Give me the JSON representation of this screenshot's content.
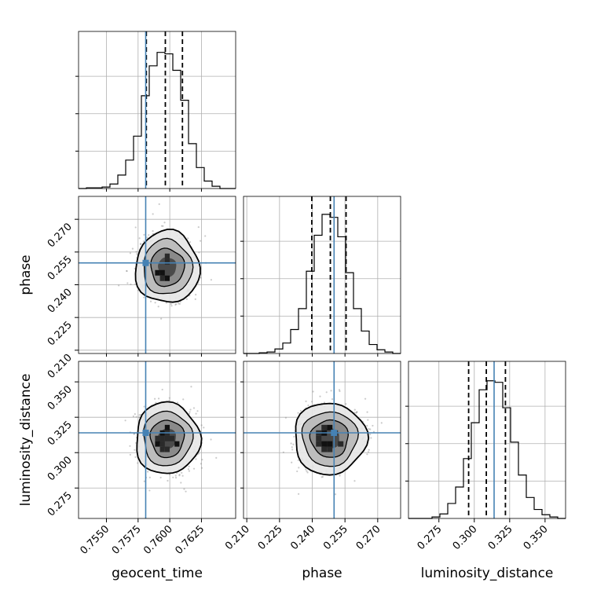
{
  "chart_data": {
    "type": "corner",
    "parameters": [
      "geocent_time",
      "phase",
      "luminosity_distance"
    ],
    "truths": [
      0.7581,
      0.25,
      0.314
    ],
    "truth_color": "#4682b4",
    "ranges": [
      [
        0.7528,
        0.7652
      ],
      [
        0.2085,
        0.2805
      ],
      [
        0.2535,
        0.3645
      ]
    ],
    "ticks": [
      [
        0.755,
        0.7575,
        0.76,
        0.7625
      ],
      [
        0.21,
        0.225,
        0.24,
        0.255,
        0.27
      ],
      [
        0.275,
        0.3,
        0.325,
        0.35
      ]
    ],
    "tick_labels": [
      [
        "0.7550",
        "0.7575",
        "0.7600",
        "0.7625"
      ],
      [
        "0.210",
        "0.225",
        "0.240",
        "0.255",
        "0.270"
      ],
      [
        "0.275",
        "0.300",
        "0.325",
        "0.350"
      ]
    ],
    "marginals": [
      {
        "parameter": "geocent_time",
        "quantiles": [
          0.75815,
          0.75965,
          0.761
        ],
        "hist_max": 1.0,
        "hist": [
          0.0,
          0.005,
          0.005,
          0.01,
          0.03,
          0.09,
          0.19,
          0.35,
          0.62,
          0.82,
          0.91,
          0.9,
          0.79,
          0.59,
          0.3,
          0.14,
          0.05,
          0.015,
          0.0,
          0.0
        ]
      },
      {
        "parameter": "phase",
        "quantiles": [
          0.2398,
          0.2483,
          0.2555
        ],
        "hist_max": 1.0,
        "hist": [
          0.0,
          0.0,
          0.005,
          0.01,
          0.03,
          0.07,
          0.16,
          0.3,
          0.55,
          0.79,
          0.93,
          0.91,
          0.78,
          0.54,
          0.3,
          0.15,
          0.06,
          0.025,
          0.01,
          0.0
        ]
      },
      {
        "parameter": "luminosity_distance",
        "quantiles": [
          0.296,
          0.3085,
          0.322
        ],
        "hist_max": 1.0,
        "hist": [
          0.0,
          0.0,
          0.0,
          0.01,
          0.03,
          0.1,
          0.21,
          0.4,
          0.64,
          0.86,
          0.92,
          0.91,
          0.74,
          0.51,
          0.29,
          0.14,
          0.06,
          0.025,
          0.01,
          0.0
        ]
      }
    ],
    "pairs": [
      {
        "x": "geocent_time",
        "y": "phase",
        "mean": [
          0.7598,
          0.248
        ],
        "sigma": [
          0.0011,
          0.0072
        ]
      },
      {
        "x": "geocent_time",
        "y": "luminosity_distance",
        "mean": [
          0.7598,
          0.31
        ],
        "sigma": [
          0.0011,
          0.011
        ]
      },
      {
        "x": "phase",
        "y": "luminosity_distance",
        "mean": [
          0.248,
          0.31
        ],
        "sigma": [
          0.0072,
          0.011
        ]
      }
    ],
    "grid": true
  }
}
